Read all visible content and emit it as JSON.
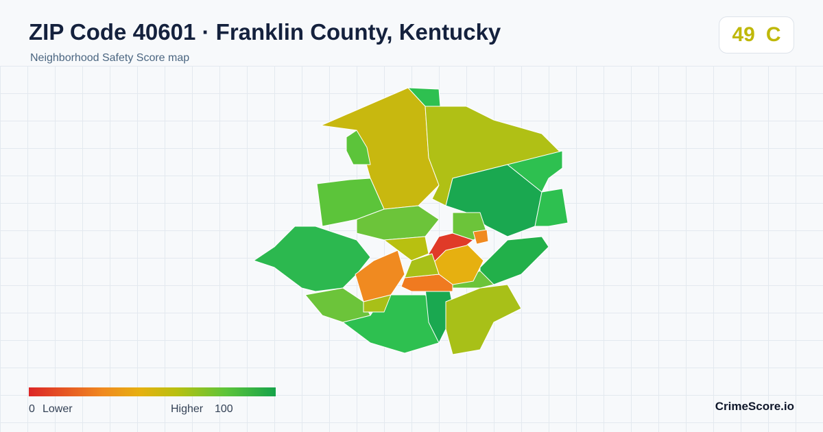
{
  "header": {
    "title": "ZIP Code 40601 · Franklin County, Kentucky",
    "subtitle": "Neighborhood Safety Score map"
  },
  "score": {
    "value": 49,
    "grade": "C"
  },
  "legend": {
    "min": 0,
    "min_label": "Lower",
    "max_label": "Higher",
    "max": 100
  },
  "brand": "CrimeScore.io"
}
